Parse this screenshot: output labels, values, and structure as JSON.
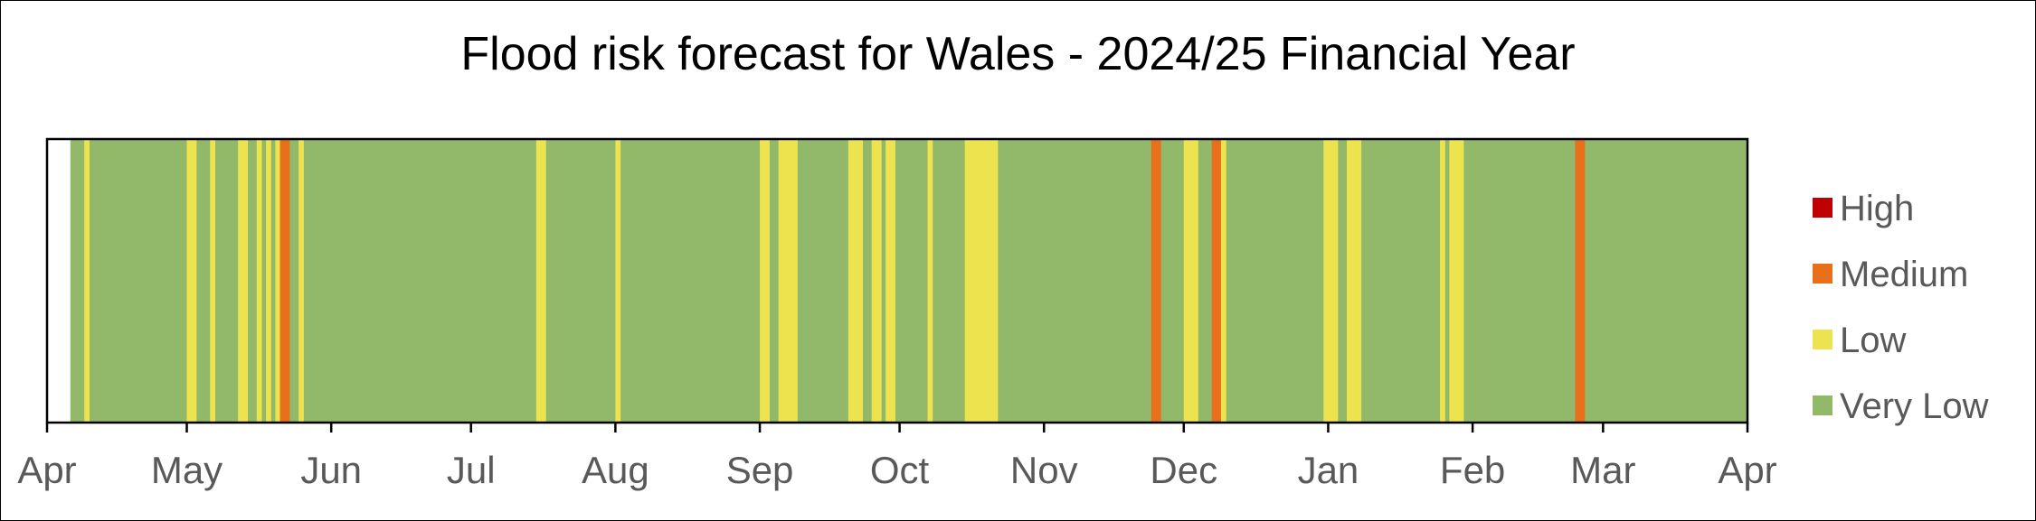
{
  "chart_data": {
    "type": "bar",
    "title": "Flood risk forecast for Wales - 2024/25 Financial Year",
    "xlabel": "",
    "ylabel": "",
    "xlim": [
      "2024-04-01",
      "2025-04-01"
    ],
    "x_ticks": [
      {
        "date": "2024-04-01",
        "label": "Apr"
      },
      {
        "date": "2024-05-01",
        "label": "May"
      },
      {
        "date": "2024-06-01",
        "label": "Jun"
      },
      {
        "date": "2024-07-01",
        "label": "Jul"
      },
      {
        "date": "2024-08-01",
        "label": "Aug"
      },
      {
        "date": "2024-09-01",
        "label": "Sep"
      },
      {
        "date": "2024-10-01",
        "label": "Oct"
      },
      {
        "date": "2024-11-01",
        "label": "Nov"
      },
      {
        "date": "2024-12-01",
        "label": "Dec"
      },
      {
        "date": "2025-01-01",
        "label": "Jan"
      },
      {
        "date": "2025-02-01",
        "label": "Feb"
      },
      {
        "date": "2025-03-01",
        "label": "Mar"
      },
      {
        "date": "2025-04-01",
        "label": "Apr"
      }
    ],
    "legend_position": "right",
    "legend": [
      {
        "name": "High",
        "color": "#c00000"
      },
      {
        "name": "Medium",
        "color": "#e8701a"
      },
      {
        "name": "Low",
        "color": "#ede34f"
      },
      {
        "name": "Very Low",
        "color": "#92b96a"
      }
    ],
    "base_category": "Very Low",
    "base_period": [
      "2024-04-06",
      "2025-03-31"
    ],
    "elevated_days": [
      {
        "date": "2024-04-09",
        "category": "Low"
      },
      {
        "date": "2024-05-01",
        "category": "Low"
      },
      {
        "date": "2024-05-02",
        "category": "Low"
      },
      {
        "date": "2024-05-06",
        "category": "Low"
      },
      {
        "date": "2024-05-12",
        "category": "Low"
      },
      {
        "date": "2024-05-13",
        "category": "Low"
      },
      {
        "date": "2024-05-16",
        "category": "Low"
      },
      {
        "date": "2024-05-18",
        "category": "Low"
      },
      {
        "date": "2024-05-20",
        "category": "Low"
      },
      {
        "date": "2024-05-21",
        "category": "Medium"
      },
      {
        "date": "2024-05-22",
        "category": "Medium"
      },
      {
        "date": "2024-05-25",
        "category": "Low"
      },
      {
        "date": "2024-07-15",
        "category": "Low"
      },
      {
        "date": "2024-07-16",
        "category": "Low"
      },
      {
        "date": "2024-08-01",
        "category": "Low"
      },
      {
        "date": "2024-09-01",
        "category": "Low"
      },
      {
        "date": "2024-09-02",
        "category": "Low"
      },
      {
        "date": "2024-09-05",
        "category": "Low"
      },
      {
        "date": "2024-09-06",
        "category": "Low"
      },
      {
        "date": "2024-09-07",
        "category": "Low"
      },
      {
        "date": "2024-09-08",
        "category": "Low"
      },
      {
        "date": "2024-09-20",
        "category": "Low"
      },
      {
        "date": "2024-09-21",
        "category": "Low"
      },
      {
        "date": "2024-09-22",
        "category": "Low"
      },
      {
        "date": "2024-09-25",
        "category": "Low"
      },
      {
        "date": "2024-09-26",
        "category": "Low"
      },
      {
        "date": "2024-09-28",
        "category": "Low"
      },
      {
        "date": "2024-09-29",
        "category": "Low"
      },
      {
        "date": "2024-10-07",
        "category": "Low"
      },
      {
        "date": "2024-10-15",
        "category": "Low"
      },
      {
        "date": "2024-10-16",
        "category": "Low"
      },
      {
        "date": "2024-10-17",
        "category": "Low"
      },
      {
        "date": "2024-10-18",
        "category": "Low"
      },
      {
        "date": "2024-10-19",
        "category": "Low"
      },
      {
        "date": "2024-10-20",
        "category": "Low"
      },
      {
        "date": "2024-10-21",
        "category": "Low"
      },
      {
        "date": "2024-11-24",
        "category": "Medium"
      },
      {
        "date": "2024-11-25",
        "category": "Medium"
      },
      {
        "date": "2024-12-01",
        "category": "Low"
      },
      {
        "date": "2024-12-02",
        "category": "Low"
      },
      {
        "date": "2024-12-03",
        "category": "Low"
      },
      {
        "date": "2024-12-07",
        "category": "Medium"
      },
      {
        "date": "2024-12-08",
        "category": "Medium"
      },
      {
        "date": "2024-12-09",
        "category": "Low"
      },
      {
        "date": "2024-12-31",
        "category": "Low"
      },
      {
        "date": "2025-01-01",
        "category": "Low"
      },
      {
        "date": "2025-01-02",
        "category": "Low"
      },
      {
        "date": "2025-01-05",
        "category": "Low"
      },
      {
        "date": "2025-01-06",
        "category": "Low"
      },
      {
        "date": "2025-01-07",
        "category": "Low"
      },
      {
        "date": "2025-01-25",
        "category": "Low"
      },
      {
        "date": "2025-01-27",
        "category": "Low"
      },
      {
        "date": "2025-01-28",
        "category": "Low"
      },
      {
        "date": "2025-01-29",
        "category": "Low"
      },
      {
        "date": "2025-02-23",
        "category": "Medium"
      },
      {
        "date": "2025-02-24",
        "category": "Medium"
      }
    ]
  }
}
